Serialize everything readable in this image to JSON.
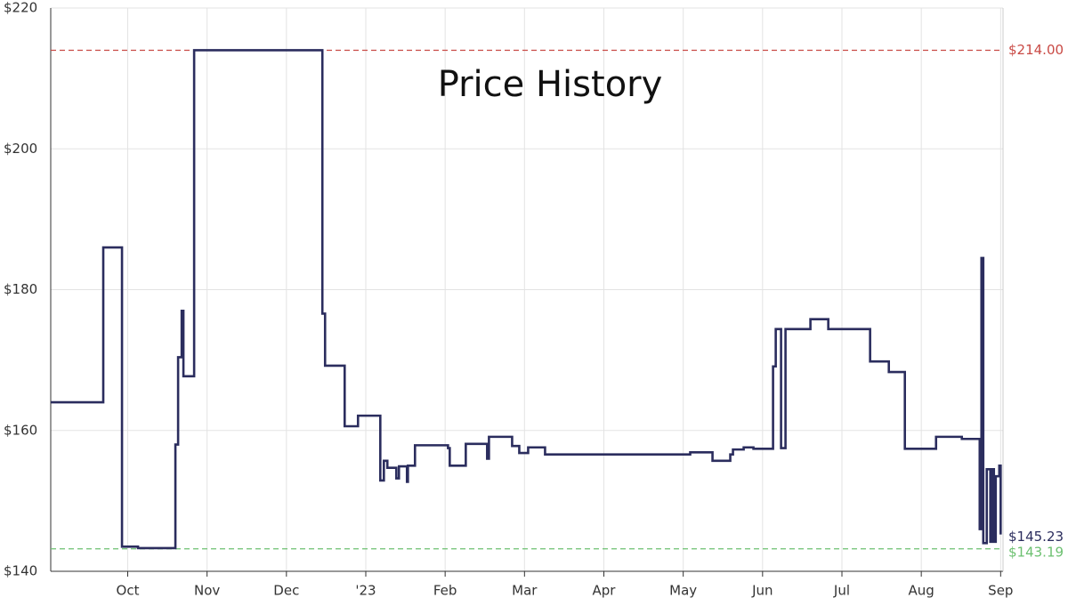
{
  "chart_data": {
    "type": "step-line",
    "title": "Price History",
    "x": [
      9.03,
      9.692,
      9.928,
      10.13,
      10.601,
      10.635,
      10.68,
      10.702,
      10.837,
      12.453,
      12.487,
      12.734,
      12.902,
      13.183,
      13.228,
      13.272,
      13.385,
      13.418,
      13.519,
      13.531,
      13.62,
      14.036,
      14.058,
      14.26,
      14.529,
      14.552,
      14.844,
      14.934,
      15.046,
      15.259,
      17.088,
      17.369,
      17.593,
      17.627,
      17.762,
      17.885,
      18.132,
      18.166,
      18.233,
      18.289,
      18.603,
      18.828,
      19.355,
      19.591,
      19.793,
      20.186,
      20.511,
      20.736,
      20.758,
      20.781,
      20.825,
      20.87,
      20.893,
      20.915,
      20.938,
      20.983,
      21.0
    ],
    "series": [
      {
        "name": "Price",
        "color": "#2b2d5e",
        "values": [
          164,
          186,
          143.5,
          143.3,
          158,
          170.4,
          177,
          167.7,
          214,
          176.6,
          169.2,
          160.6,
          162.1,
          152.9,
          155.7,
          154.7,
          153.2,
          154.9,
          152.7,
          155,
          157.9,
          157.5,
          155,
          158.1,
          156,
          159.1,
          157.8,
          156.8,
          157.6,
          156.6,
          156.9,
          155.7,
          156.6,
          157.3,
          157.6,
          157.4,
          169.1,
          174.4,
          157.5,
          174.4,
          175.8,
          174.4,
          169.8,
          168.3,
          157.4,
          159.1,
          158.8,
          146,
          184.5,
          144,
          154.5,
          144.2,
          154.5,
          144.2,
          153.5,
          155,
          145.23
        ]
      }
    ],
    "xlim": [
      9.03,
      21.03
    ],
    "xticks": [
      {
        "value": 10,
        "label": "Oct"
      },
      {
        "value": 11,
        "label": "Nov"
      },
      {
        "value": 12,
        "label": "Dec"
      },
      {
        "value": 13,
        "label": "'23"
      },
      {
        "value": 14,
        "label": "Feb"
      },
      {
        "value": 15,
        "label": "Mar"
      },
      {
        "value": 16,
        "label": "Apr"
      },
      {
        "value": 17,
        "label": "May"
      },
      {
        "value": 18,
        "label": "Jun"
      },
      {
        "value": 19,
        "label": "Jul"
      },
      {
        "value": 20,
        "label": "Aug"
      },
      {
        "value": 21,
        "label": "Sep"
      }
    ],
    "ylim": [
      140,
      220
    ],
    "yticks": [
      {
        "value": 140,
        "label": "$140"
      },
      {
        "value": 160,
        "label": "$160"
      },
      {
        "value": 180,
        "label": "$180"
      },
      {
        "value": 200,
        "label": "$200"
      },
      {
        "value": 220,
        "label": "$220"
      }
    ],
    "grid": true,
    "reference_lines": [
      {
        "value": 214,
        "label": "$214.00",
        "color": "#c94a45"
      },
      {
        "value": 143.19,
        "label": "$143.19",
        "color": "#6cc070"
      }
    ],
    "last_price": {
      "value": 145.23,
      "label": "$145.23",
      "color": "#2b2d5e"
    }
  }
}
